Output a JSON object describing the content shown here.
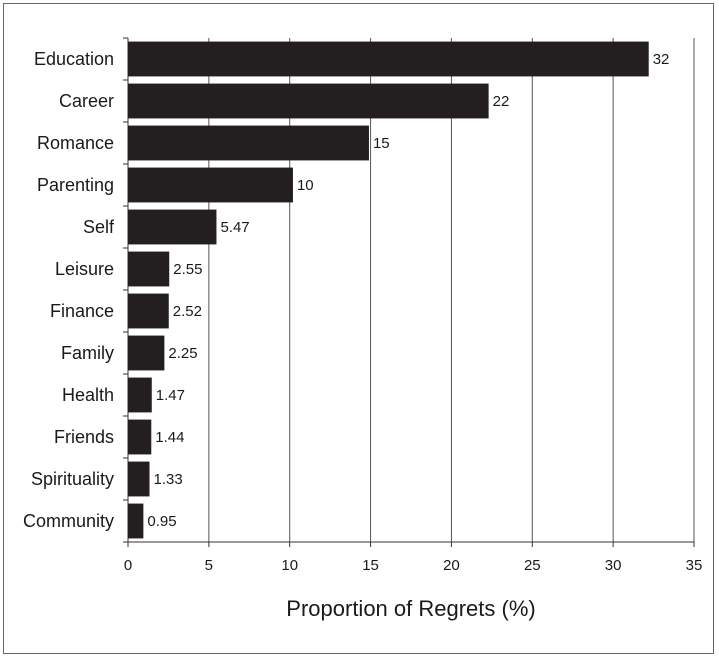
{
  "chart_data": {
    "type": "bar",
    "orientation": "horizontal",
    "categories": [
      "Education",
      "Career",
      "Romance",
      "Parenting",
      "Self",
      "Leisure",
      "Finance",
      "Family",
      "Health",
      "Friends",
      "Spirituality",
      "Community"
    ],
    "values": [
      32.2,
      22.3,
      14.9,
      10.2,
      5.47,
      2.55,
      2.52,
      2.25,
      1.47,
      1.44,
      1.33,
      0.95
    ],
    "data_labels": [
      "32",
      "22",
      "15",
      "10",
      "5.47",
      "2.55",
      "2.52",
      "2.25",
      "1.47",
      "1.44",
      "1.33",
      "0.95"
    ],
    "xlabel": "Proportion of Regrets (%)",
    "ylabel": "",
    "xlim": [
      0,
      35
    ],
    "xticks": [
      0,
      5,
      10,
      15,
      20,
      25,
      30,
      35
    ],
    "grid": "vertical",
    "legend": "none",
    "colors": {
      "bar": "#231f20",
      "grid": "#555555",
      "axis": "#333333",
      "text": "#1a1a1a"
    }
  }
}
